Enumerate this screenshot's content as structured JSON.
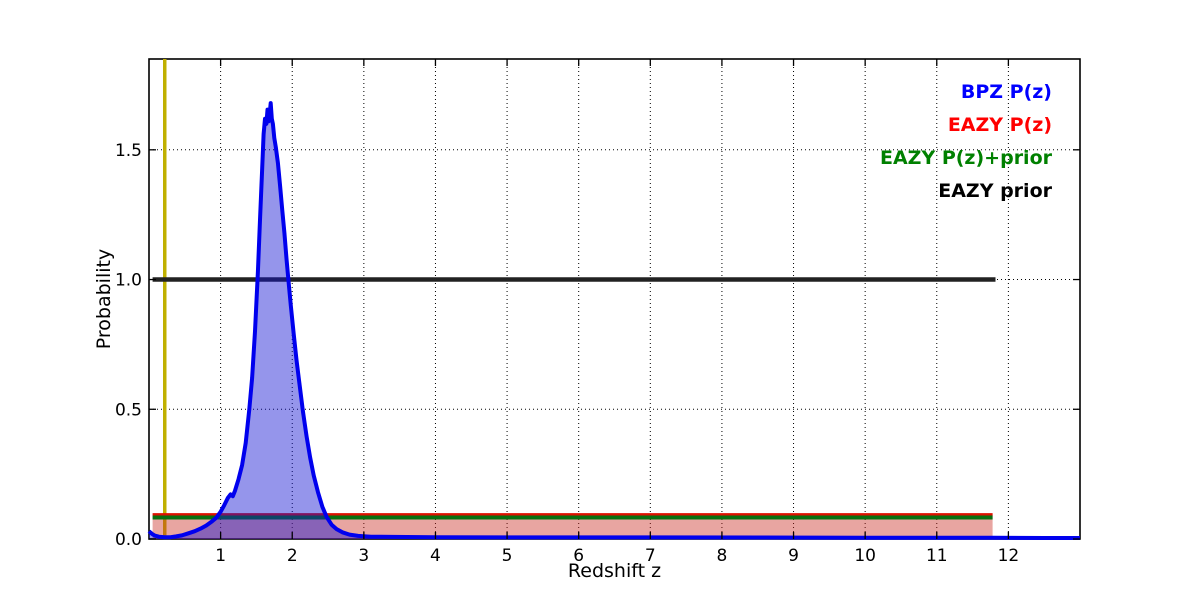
{
  "figure": {
    "background": "#ffffff"
  },
  "chart_data": {
    "type": "line",
    "title": "",
    "xlabel": "Redshift z",
    "ylabel": "Probability",
    "xlim": [
      0,
      13
    ],
    "ylim": [
      0,
      1.85
    ],
    "xticks": [
      1,
      2,
      3,
      4,
      5,
      6,
      7,
      8,
      9,
      10,
      11,
      12
    ],
    "xticklabels": [
      "1",
      "2",
      "3",
      "4",
      "5",
      "6",
      "7",
      "8",
      "9",
      "10",
      "11",
      "12"
    ],
    "yticks": [
      0.0,
      0.5,
      1.0,
      1.5
    ],
    "yticklabels": [
      "0.0",
      "0.5",
      "1.0",
      "1.5"
    ],
    "grid": {
      "style": "dotted",
      "color": "#000000",
      "on": true
    },
    "legend": {
      "position": "upper right",
      "items": [
        {
          "label": "BPZ P(z)",
          "color": "#0000ff"
        },
        {
          "label": "EAZY P(z)",
          "color": "#ff0000"
        },
        {
          "label": "EAZY P(z)+prior",
          "color": "#008000"
        },
        {
          "label": "EAZY prior",
          "color": "#000000"
        }
      ]
    },
    "vline": {
      "name": "redshift-marker",
      "x": 0.22,
      "color": "#c0b000",
      "width": 3.5
    },
    "series": [
      {
        "name": "EAZY prior",
        "color": "#222222",
        "width": 4.5,
        "fill": null,
        "points": [
          [
            0.05,
            1.0
          ],
          [
            11.82,
            1.0
          ]
        ]
      },
      {
        "name": "EAZY P(z)",
        "color": "#dd1100",
        "width": 2.5,
        "fill": "rgba(200,40,30,0.42)",
        "points": [
          [
            0.05,
            0.095
          ],
          [
            11.78,
            0.095
          ]
        ]
      },
      {
        "name": "EAZY P(z)+prior",
        "color": "#087010",
        "width": 4,
        "fill": null,
        "points": [
          [
            0.05,
            0.083
          ],
          [
            11.78,
            0.083
          ]
        ]
      },
      {
        "name": "BPZ P(z)",
        "color": "#0000ee",
        "width": 4,
        "fill": "rgba(20,20,210,0.45)",
        "points": [
          [
            0.0,
            0.03
          ],
          [
            0.04,
            0.02
          ],
          [
            0.08,
            0.013
          ],
          [
            0.14,
            0.009
          ],
          [
            0.22,
            0.007
          ],
          [
            0.3,
            0.007
          ],
          [
            0.38,
            0.01
          ],
          [
            0.46,
            0.014
          ],
          [
            0.55,
            0.022
          ],
          [
            0.64,
            0.03
          ],
          [
            0.72,
            0.04
          ],
          [
            0.8,
            0.052
          ],
          [
            0.88,
            0.068
          ],
          [
            0.94,
            0.082
          ],
          [
            1.0,
            0.105
          ],
          [
            1.05,
            0.13
          ],
          [
            1.1,
            0.158
          ],
          [
            1.14,
            0.172
          ],
          [
            1.17,
            0.165
          ],
          [
            1.2,
            0.185
          ],
          [
            1.25,
            0.23
          ],
          [
            1.3,
            0.285
          ],
          [
            1.35,
            0.37
          ],
          [
            1.4,
            0.5
          ],
          [
            1.44,
            0.62
          ],
          [
            1.48,
            0.8
          ],
          [
            1.52,
            1.03
          ],
          [
            1.55,
            1.23
          ],
          [
            1.58,
            1.43
          ],
          [
            1.6,
            1.56
          ],
          [
            1.62,
            1.62
          ],
          [
            1.64,
            1.6
          ],
          [
            1.655,
            1.655
          ],
          [
            1.67,
            1.61
          ],
          [
            1.685,
            1.64
          ],
          [
            1.7,
            1.68
          ],
          [
            1.715,
            1.62
          ],
          [
            1.73,
            1.6
          ],
          [
            1.75,
            1.545
          ],
          [
            1.77,
            1.51
          ],
          [
            1.8,
            1.45
          ],
          [
            1.83,
            1.36
          ],
          [
            1.86,
            1.27
          ],
          [
            1.89,
            1.18
          ],
          [
            1.92,
            1.08
          ],
          [
            1.95,
            0.99
          ],
          [
            1.98,
            0.9
          ],
          [
            2.02,
            0.79
          ],
          [
            2.06,
            0.69
          ],
          [
            2.1,
            0.6
          ],
          [
            2.15,
            0.49
          ],
          [
            2.2,
            0.395
          ],
          [
            2.25,
            0.315
          ],
          [
            2.3,
            0.245
          ],
          [
            2.36,
            0.18
          ],
          [
            2.42,
            0.125
          ],
          [
            2.48,
            0.085
          ],
          [
            2.55,
            0.055
          ],
          [
            2.62,
            0.038
          ],
          [
            2.7,
            0.026
          ],
          [
            2.8,
            0.017
          ],
          [
            2.92,
            0.012
          ],
          [
            3.1,
            0.009
          ],
          [
            3.4,
            0.008
          ],
          [
            4.0,
            0.007
          ],
          [
            5.0,
            0.006
          ],
          [
            7.0,
            0.006
          ],
          [
            10.0,
            0.005
          ],
          [
            11.8,
            0.005
          ],
          [
            12.5,
            0.004
          ],
          [
            13.0,
            0.004
          ]
        ]
      }
    ]
  }
}
